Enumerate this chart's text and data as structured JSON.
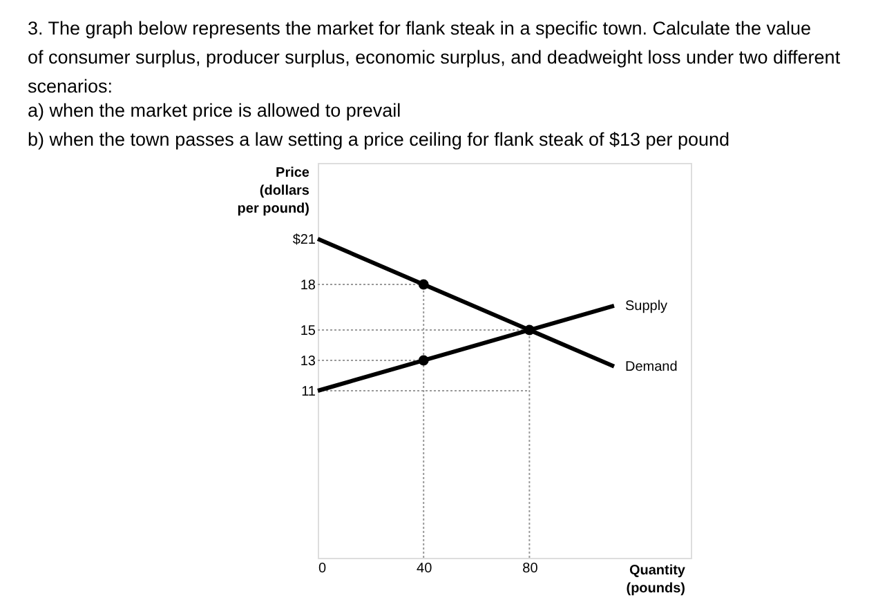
{
  "chart_data": {
    "type": "line",
    "title": "3. The graph below represents the market for flank steak in a specific town. Calculate the value of consumer surplus, producer surplus, economic surplus, and deadweight loss under two different scenarios:",
    "annotations": [
      "a) when the market price is allowed to prevail",
      "b) when the town passes a law setting a price ceiling for flank steak of $13 per pound"
    ],
    "xlabel": "Quantity (pounds)",
    "ylabel": "Price (dollars per pound)",
    "xlim": [
      0,
      141
    ],
    "ylim": [
      0,
      26
    ],
    "xticks": [
      0,
      40,
      80
    ],
    "yticks": [
      11,
      13,
      15,
      18,
      {
        "value": 21,
        "label": "$21"
      }
    ],
    "grid": false,
    "series": [
      {
        "type": "line",
        "color": "#999999",
        "line_style": "dotted",
        "x": [
          0,
          40
        ],
        "values": [
          18,
          18
        ]
      },
      {
        "type": "line",
        "color": "#999999",
        "line_style": "dotted",
        "x": [
          0,
          80
        ],
        "values": [
          15,
          15
        ]
      },
      {
        "type": "line",
        "color": "#999999",
        "line_style": "dotted",
        "x": [
          0,
          40
        ],
        "values": [
          13,
          13
        ]
      },
      {
        "type": "line",
        "color": "#999999",
        "line_style": "dotted",
        "x": [
          0,
          80
        ],
        "values": [
          11,
          11
        ]
      },
      {
        "type": "line",
        "color": "#999999",
        "line_style": "dotted",
        "x": [
          40,
          40
        ],
        "values": [
          0,
          18
        ]
      },
      {
        "type": "line",
        "color": "#999999",
        "line_style": "dotted",
        "x": [
          80,
          80
        ],
        "values": [
          0,
          15
        ]
      },
      {
        "name": "Supply",
        "type": "line",
        "color": "#000000",
        "line_style": "solid",
        "x": [
          0,
          112
        ],
        "values": [
          11,
          16.6
        ]
      },
      {
        "name": "Demand",
        "type": "line",
        "color": "#000000",
        "line_style": "solid",
        "x": [
          0,
          112
        ],
        "values": [
          21,
          12.6
        ]
      },
      {
        "type": "scatter",
        "color": "#000000",
        "marker": "circle",
        "x": [
          40,
          40,
          80
        ],
        "values": [
          18,
          13,
          15
        ]
      }
    ]
  }
}
